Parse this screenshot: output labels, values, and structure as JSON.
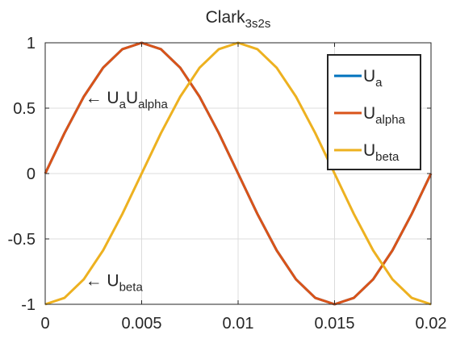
{
  "chart_data": {
    "type": "line",
    "title": {
      "base": "Clark",
      "sub": "3s2s"
    },
    "xlabel": "",
    "ylabel": "",
    "xlim": [
      0,
      0.02
    ],
    "ylim": [
      -1,
      1
    ],
    "x_ticks": [
      0,
      0.005,
      0.01,
      0.015,
      0.02
    ],
    "x_tick_labels": [
      "0",
      "0.005",
      "0.01",
      "0.015",
      "0.02"
    ],
    "y_ticks": [
      -1,
      -0.5,
      0,
      0.5,
      1
    ],
    "y_tick_labels": [
      "-1",
      "-0.5",
      "0",
      "0.5",
      "1"
    ],
    "grid": true,
    "legend_placement": "top-right",
    "series": [
      {
        "name": {
          "base": "U",
          "sub": "a"
        },
        "color": "#0072BD",
        "x": [
          0,
          0.001,
          0.002,
          0.003,
          0.004,
          0.005,
          0.006,
          0.007,
          0.008,
          0.009,
          0.01,
          0.011,
          0.012,
          0.013,
          0.014,
          0.015,
          0.016,
          0.017,
          0.018,
          0.019,
          0.02
        ],
        "y": [
          0,
          0.309,
          0.588,
          0.809,
          0.951,
          1,
          0.951,
          0.809,
          0.588,
          0.309,
          0,
          -0.309,
          -0.588,
          -0.809,
          -0.951,
          -1,
          -0.951,
          -0.809,
          -0.588,
          -0.309,
          0
        ]
      },
      {
        "name": {
          "base": "U",
          "sub": "alpha"
        },
        "color": "#D95319",
        "x": [
          0,
          0.001,
          0.002,
          0.003,
          0.004,
          0.005,
          0.006,
          0.007,
          0.008,
          0.009,
          0.01,
          0.011,
          0.012,
          0.013,
          0.014,
          0.015,
          0.016,
          0.017,
          0.018,
          0.019,
          0.02
        ],
        "y": [
          0,
          0.309,
          0.588,
          0.809,
          0.951,
          1,
          0.951,
          0.809,
          0.588,
          0.309,
          0,
          -0.309,
          -0.588,
          -0.809,
          -0.951,
          -1,
          -0.951,
          -0.809,
          -0.588,
          -0.309,
          0
        ]
      },
      {
        "name": {
          "base": "U",
          "sub": "beta"
        },
        "color": "#EDB120",
        "x": [
          0,
          0.001,
          0.002,
          0.003,
          0.004,
          0.005,
          0.006,
          0.007,
          0.008,
          0.009,
          0.01,
          0.011,
          0.012,
          0.013,
          0.014,
          0.015,
          0.016,
          0.017,
          0.018,
          0.019,
          0.02
        ],
        "y": [
          -1,
          -0.951,
          -0.809,
          -0.588,
          -0.309,
          0,
          0.309,
          0.588,
          0.809,
          0.951,
          1,
          0.951,
          0.809,
          0.588,
          0.309,
          0,
          -0.309,
          -0.588,
          -0.809,
          -0.951,
          -1
        ]
      }
    ],
    "annotations": [
      {
        "arrow": "←",
        "parts": [
          {
            "base": "U",
            "sub": "a"
          },
          {
            "base": "U",
            "sub": "alpha"
          }
        ],
        "x": 0.0022,
        "y": 0.6
      },
      {
        "arrow": "←",
        "parts": [
          {
            "base": "U",
            "sub": "beta"
          }
        ],
        "x": 0.0022,
        "y": -0.8
      }
    ]
  }
}
